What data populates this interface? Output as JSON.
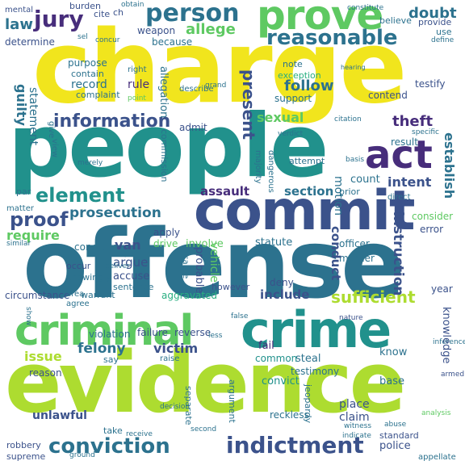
{
  "palette": {
    "yellow": "#f1e51d",
    "lime": "#addc30",
    "green": "#5ec962",
    "teal": "#21918c",
    "tealblue": "#2c728e",
    "blue": "#3b528b",
    "indigo": "#472d7b",
    "purple": "#440154",
    "mint": "#28ae80"
  },
  "words": {
    "charge": "charge",
    "people": "people",
    "offense": "offense",
    "evidence": "evidence",
    "commit": "commit",
    "crime": "crime",
    "criminal": "criminal",
    "act": "act",
    "prove": "prove",
    "person": "person",
    "jury": "jury",
    "reasonable": "reasonable",
    "conviction": "conviction",
    "indictment": "indictment",
    "element": "element",
    "information": "information",
    "proof": "proof",
    "doubt": "doubt",
    "law": "law",
    "allege": "allege",
    "prosecution": "prosecution",
    "theft": "theft",
    "sexual": "sexual",
    "assault": "assault",
    "section": "section",
    "intent": "intent",
    "count": "count",
    "establish": "establish",
    "require": "require",
    "follow": "follow",
    "present": "present",
    "guilty": "guilty",
    "statement": "statement",
    "record": "record",
    "rule": "rule",
    "weapon": "weapon",
    "because": "because",
    "determine": "determine",
    "purpose": "purpose",
    "contain": "contain",
    "complaint": "complaint",
    "allegation": "allegation",
    "issue": "issue",
    "felony": "felony",
    "victim": "victim",
    "sufficient": "sufficient",
    "include": "include",
    "van": "van",
    "argue": "argue",
    "accuse": "accuse",
    "instruction": "instruction",
    "conduct": "conduct",
    "motion": "motion",
    "reverse": "reverse",
    "failure": "failure",
    "violation": "violation",
    "steal": "steal",
    "common": "common",
    "fail": "fail",
    "testimony": "testimony",
    "convict": "convict",
    "unlawful": "unlawful",
    "place": "place",
    "claim": "claim",
    "police": "police",
    "standard": "standard",
    "robbery": "robbery",
    "supreme": "supreme",
    "reckless": "reckless",
    "knowledge": "knowledge",
    "consider": "consider",
    "error": "error",
    "officer": "officer",
    "murder": "murder",
    "statute": "statute",
    "involve": "involve",
    "drive": "drive",
    "apply": "apply",
    "conclude": "conclude",
    "circumstance": "circumstance",
    "warrant": "warrant",
    "sentence": "sentence",
    "aggravated": "aggravated",
    "vehicle": "vehicle",
    "probable": "probable",
    "deny": "deny",
    "however": "however",
    "cause": "cause",
    "base": "base",
    "know": "know",
    "result": "result",
    "testify": "testify",
    "contend": "contend",
    "support": "support",
    "exception": "exception",
    "admit": "admit",
    "commission": "commission",
    "mental": "mental",
    "burden": "burden",
    "cite": "cite",
    "ch": "ch",
    "believe": "believe",
    "provide": "provide",
    "use": "use",
    "define": "define",
    "concur": "concur",
    "sel": "sel",
    "note": "note",
    "describe": "describe",
    "grand": "grand",
    "right": "right",
    "point": "point",
    "occur": "occur",
    "knowingly": "knowingly",
    "agree": "agree",
    "area": "area",
    "say": "say",
    "raise": "raise",
    "decision": "decision",
    "take": "take",
    "receive": "receive",
    "reason": "reason",
    "argument": "argument",
    "jeopardy": "jeopardy",
    "separate": "separate",
    "armed": "armed",
    "appellate": "appellate",
    "analysis": "analysis",
    "witness": "witness",
    "year": "year",
    "officer2": "prior",
    "attempt": "attempt",
    "direct": "direct",
    "dangerous": "dangerous",
    "majority": "majority",
    "verdict": "verdict",
    "citation": "citation",
    "par": "par",
    "matter": "matter",
    "view": "view",
    "give": "give",
    "merely": "merely",
    "similar": "similar",
    "show": "show",
    "deliver": "deliver",
    "nature": "nature",
    "false": "false",
    "less": "less",
    "second": "second",
    "ground": "ground",
    "indicate": "indicate",
    "abuse": "abuse",
    "inference": "inference",
    "specific": "specific",
    "basis": "basis",
    "constitute": "constitute",
    "obtain": "obtain",
    "hearing": "hearing"
  }
}
